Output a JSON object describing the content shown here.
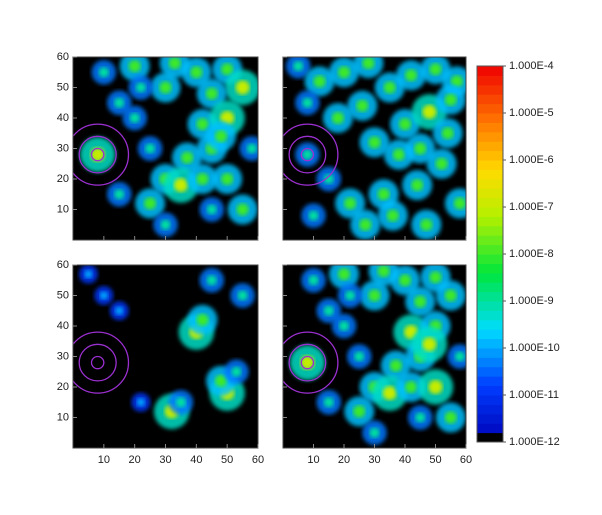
{
  "chart_data": {
    "type": "heatmap",
    "xlim": [
      0,
      60
    ],
    "ylim": [
      0,
      60
    ],
    "xticks": [
      10,
      20,
      30,
      40,
      50,
      60
    ],
    "yticks": [
      10,
      20,
      30,
      40,
      50,
      60
    ],
    "color_scale": "log",
    "colorbar": {
      "lim": [
        1e-12,
        0.0001
      ],
      "ticks": [
        {
          "value": 0.0001,
          "label": "1.000E-4"
        },
        {
          "value": 1e-05,
          "label": "1.000E-5"
        },
        {
          "value": 1e-06,
          "label": "1.000E-6"
        },
        {
          "value": 1e-07,
          "label": "1.000E-7"
        },
        {
          "value": 1e-08,
          "label": "1.000E-8"
        },
        {
          "value": 1e-09,
          "label": "1.000E-9"
        },
        {
          "value": 1e-10,
          "label": "1.000E-10"
        },
        {
          "value": 1e-11,
          "label": "1.000E-11"
        },
        {
          "value": 1e-12,
          "label": "1.000E-12"
        }
      ]
    },
    "circle": {
      "x": 8,
      "y": 28,
      "radii": [
        2,
        6,
        10
      ],
      "color": "#9b30d0"
    },
    "panels": [
      {
        "x": [
          20,
          30,
          40,
          50,
          55,
          45,
          42,
          50,
          45,
          37,
          30,
          35,
          25,
          42,
          50,
          55,
          45,
          15,
          10,
          20,
          25,
          58,
          8,
          15,
          30,
          33,
          48,
          22
        ],
        "y": [
          57,
          50,
          55,
          56,
          50,
          48,
          38,
          40,
          30,
          27,
          20,
          18,
          12,
          20,
          20,
          10,
          10,
          45,
          55,
          40,
          30,
          30,
          28,
          15,
          5,
          58,
          34,
          50
        ],
        "values": [
          1e-08,
          1e-08,
          1e-08,
          1e-08,
          1e-07,
          1e-08,
          1e-08,
          1e-07,
          1e-08,
          1e-08,
          1e-08,
          1e-07,
          1e-08,
          1e-08,
          1e-08,
          1e-08,
          1e-09,
          1e-09,
          1e-09,
          1e-09,
          1e-09,
          1e-09,
          1e-07,
          1e-09,
          1e-09,
          1e-08,
          1e-08,
          1e-09
        ]
      },
      {
        "x": [
          5,
          12,
          20,
          28,
          35,
          42,
          50,
          57,
          8,
          18,
          26,
          40,
          48,
          55,
          15,
          30,
          38,
          45,
          52,
          22,
          33,
          44,
          58,
          10,
          27,
          36,
          47,
          54,
          8
        ],
        "y": [
          57,
          52,
          55,
          58,
          50,
          54,
          56,
          52,
          45,
          40,
          44,
          38,
          42,
          46,
          20,
          32,
          28,
          30,
          25,
          12,
          15,
          18,
          12,
          8,
          5,
          8,
          5,
          35,
          28
        ],
        "values": [
          1e-09,
          1e-08,
          1e-08,
          1e-08,
          1e-08,
          1e-08,
          1e-08,
          1e-08,
          1e-09,
          1e-08,
          1e-08,
          1e-08,
          1e-07,
          1e-08,
          1e-09,
          1e-08,
          1e-08,
          1e-08,
          1e-08,
          1e-08,
          1e-08,
          1e-08,
          1e-08,
          1e-09,
          1e-08,
          1e-08,
          1e-08,
          1e-08,
          1e-09
        ]
      },
      {
        "x": [
          40,
          42,
          50,
          48,
          32,
          35,
          45,
          55,
          5,
          10,
          15,
          53,
          22
        ],
        "y": [
          38,
          42,
          18,
          22,
          12,
          15,
          55,
          50,
          57,
          50,
          45,
          25,
          15
        ],
        "values": [
          1e-07,
          1e-08,
          1e-07,
          1e-08,
          1e-07,
          1e-09,
          1e-09,
          1e-09,
          1e-10,
          1e-10,
          1e-10,
          1e-09,
          1e-10
        ]
      },
      {
        "x": [
          20,
          30,
          40,
          50,
          55,
          45,
          42,
          50,
          45,
          37,
          30,
          35,
          25,
          42,
          50,
          55,
          45,
          15,
          10,
          20,
          25,
          58,
          8,
          15,
          30,
          33,
          48,
          22
        ],
        "y": [
          57,
          50,
          55,
          56,
          50,
          48,
          38,
          40,
          30,
          27,
          20,
          18,
          12,
          20,
          20,
          10,
          10,
          45,
          55,
          40,
          30,
          30,
          28,
          15,
          5,
          58,
          34,
          50
        ],
        "values": [
          1e-08,
          1e-08,
          1e-08,
          1e-08,
          1e-08,
          1e-08,
          1e-07,
          1e-08,
          1e-08,
          1e-08,
          1e-08,
          1e-07,
          1e-08,
          1e-08,
          1e-07,
          1e-08,
          1e-09,
          1e-09,
          1e-09,
          1e-09,
          1e-09,
          1e-09,
          1e-07,
          1e-09,
          1e-09,
          1e-08,
          1e-07,
          1e-09
        ]
      }
    ]
  }
}
